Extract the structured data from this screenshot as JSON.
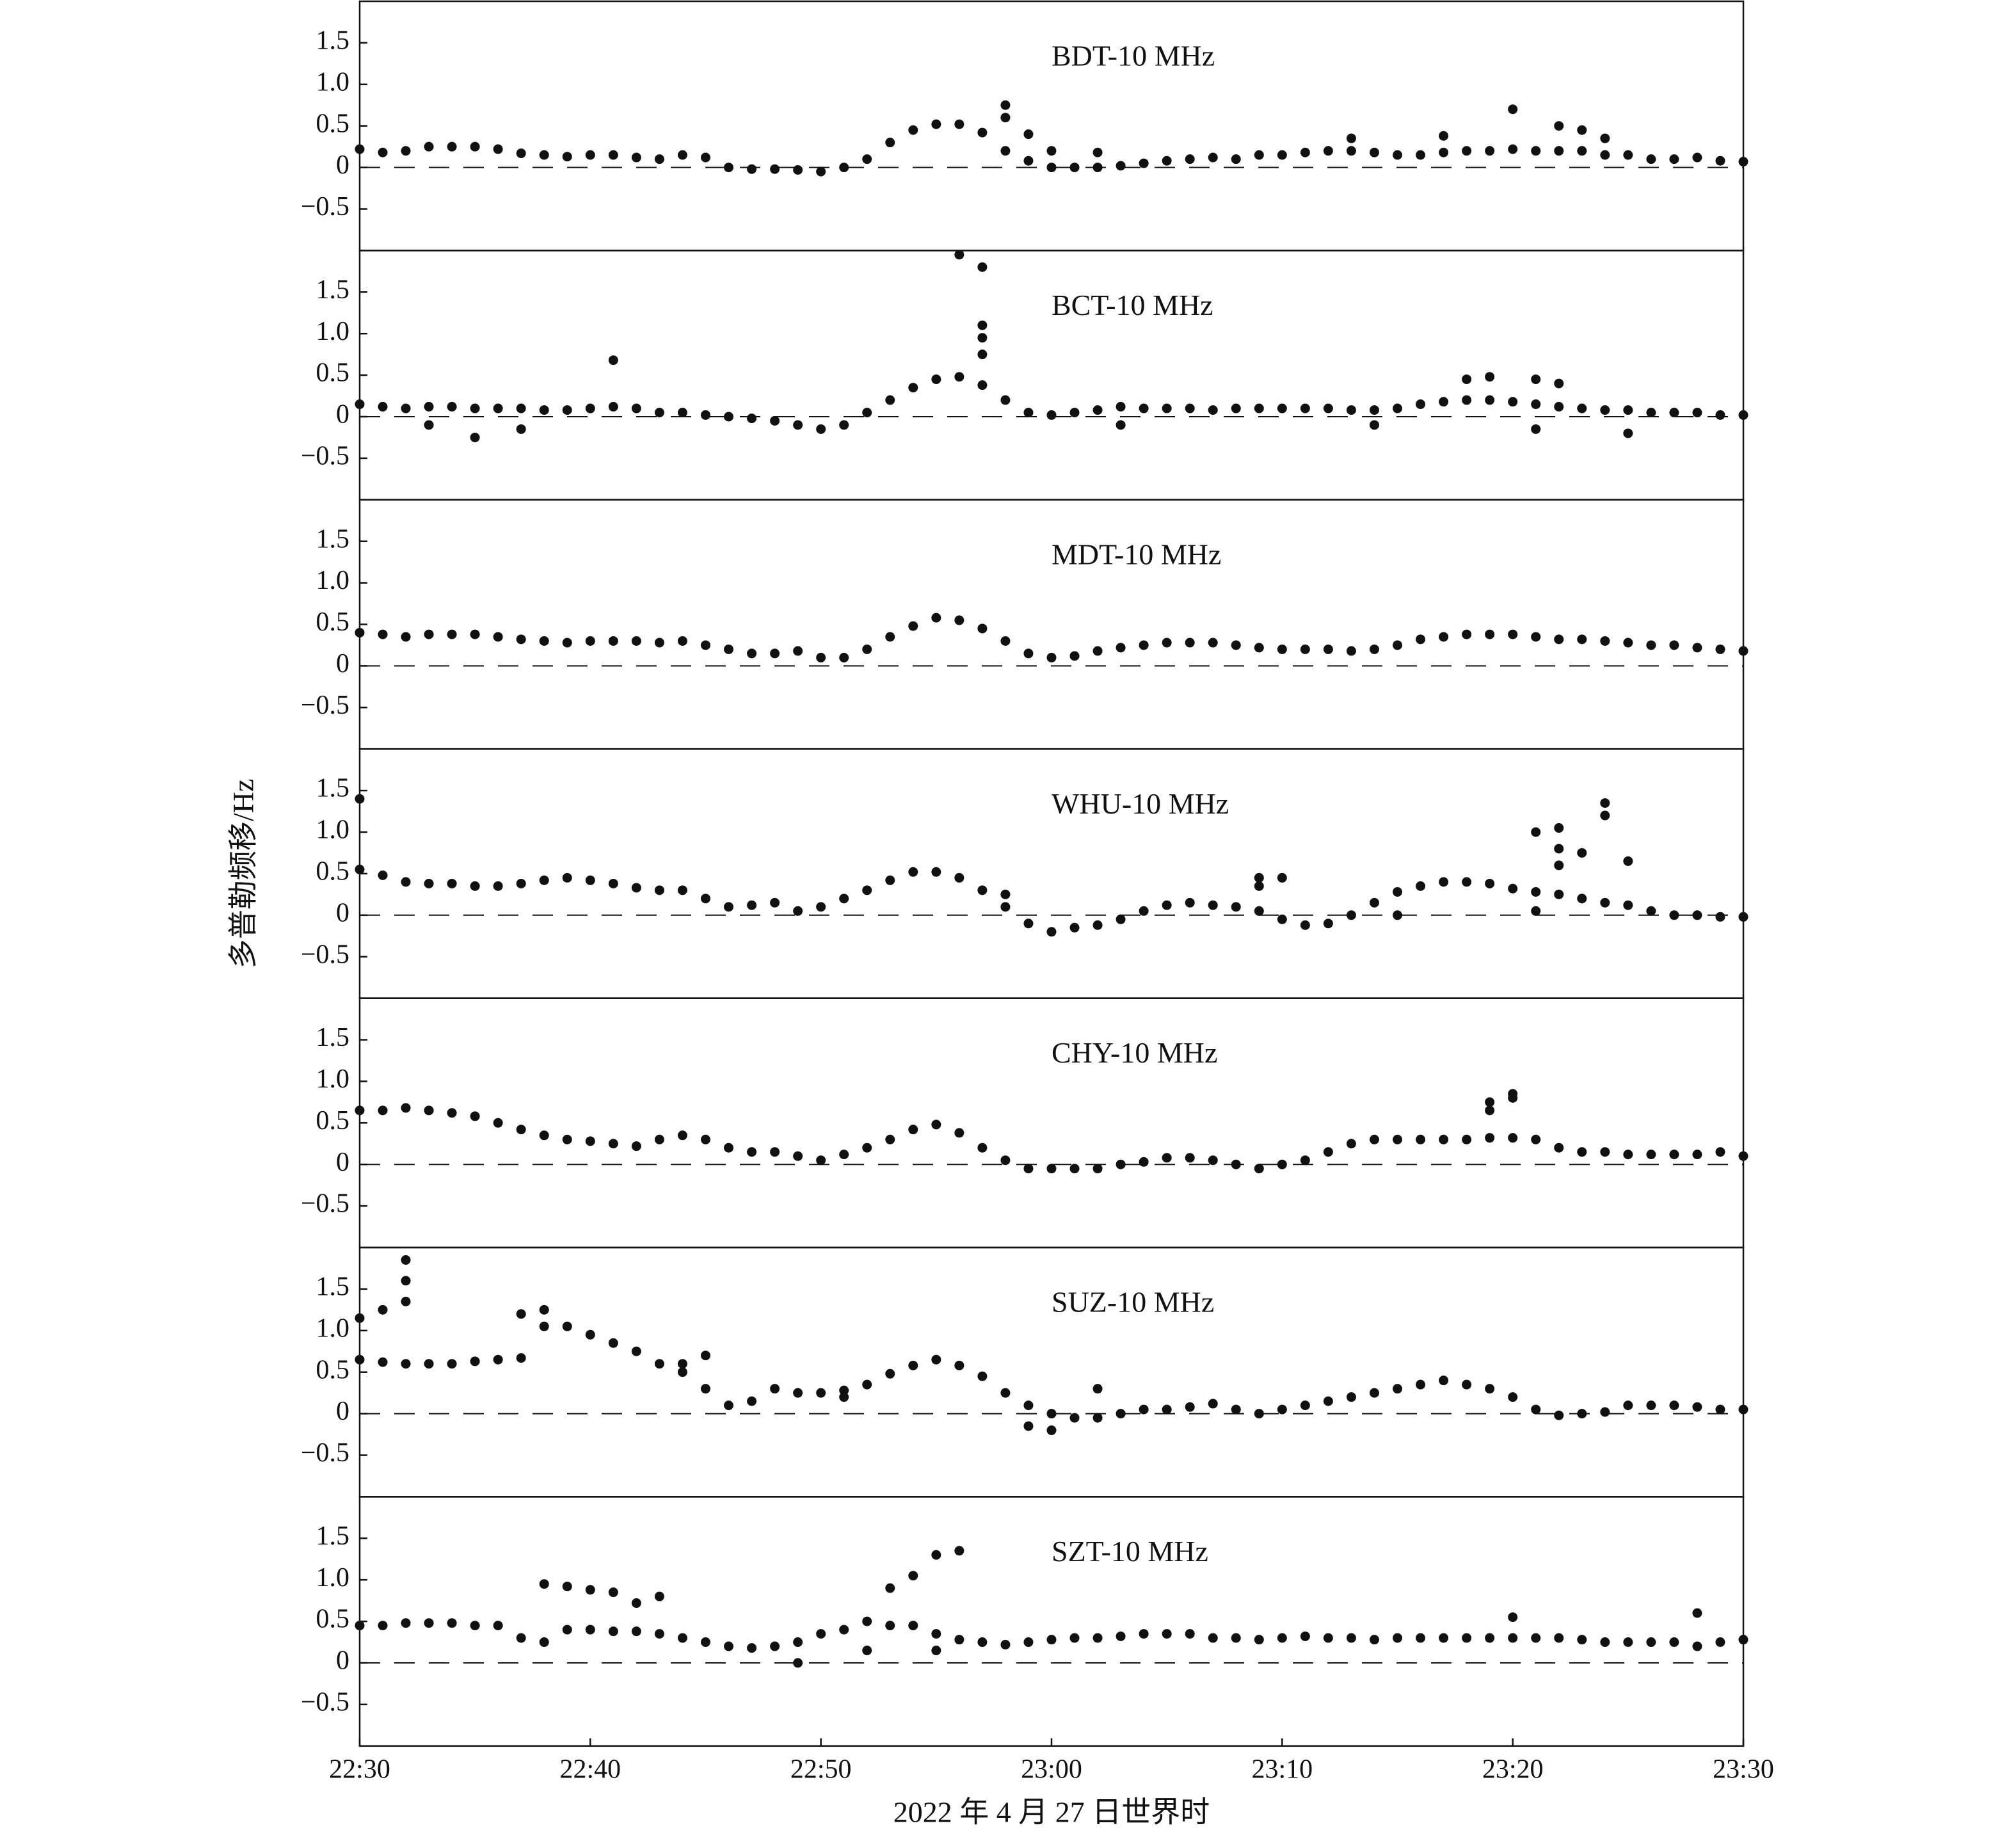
{
  "chart_data": [
    {
      "type": "scatter",
      "title": "BDT-10 MHz",
      "color": "#111111",
      "xlim": [
        "22:30",
        "23:30"
      ],
      "ylim": [
        -1,
        2
      ],
      "yticks": [
        {
          "value": -0.5,
          "label": "−0.5"
        },
        0,
        0.5,
        {
          "value": 1,
          "label": "1.0"
        },
        1.5
      ],
      "reference_line": 0,
      "x": [
        "22:30",
        "22:31",
        "22:32",
        "22:33",
        "22:34",
        "22:35",
        "22:36",
        "22:37",
        "22:38",
        "22:39",
        "22:40",
        "22:41",
        "22:42",
        "22:43",
        "22:44",
        "22:45",
        "22:46",
        "22:47",
        "22:48",
        "22:49",
        "22:50",
        "22:51",
        "22:52",
        "22:53",
        "22:54",
        "22:55",
        "22:56",
        "22:57",
        "22:58",
        "22:59",
        "23:00",
        "23:01",
        "23:02",
        "23:03",
        "23:04",
        "23:05",
        "23:06",
        "23:07",
        "23:08",
        "23:09",
        "23:10",
        "23:11",
        "23:12",
        "23:13",
        "23:14",
        "23:15",
        "23:16",
        "23:17",
        "23:18",
        "23:19",
        "23:20",
        "23:21",
        "23:22",
        "23:23",
        "23:24",
        "23:25",
        "23:26",
        "23:27",
        "23:28",
        "23:29",
        "23:30",
        "22:58",
        "22:58",
        "22:59",
        "23:00",
        "23:02",
        "23:13",
        "23:17",
        "23:20",
        "23:22",
        "23:23",
        "23:24"
      ],
      "values": [
        0.22,
        0.18,
        0.2,
        0.25,
        0.25,
        0.25,
        0.22,
        0.17,
        0.15,
        0.13,
        0.15,
        0.15,
        0.12,
        0.1,
        0.15,
        0.12,
        0,
        -0.02,
        -0.02,
        -0.03,
        -0.05,
        0,
        0.1,
        0.3,
        0.45,
        0.52,
        0.52,
        0.42,
        0.2,
        0.08,
        0,
        0,
        0,
        0.02,
        0.05,
        0.08,
        0.1,
        0.12,
        0.1,
        0.15,
        0.15,
        0.18,
        0.2,
        0.2,
        0.18,
        0.15,
        0.15,
        0.18,
        0.2,
        0.2,
        0.22,
        0.2,
        0.2,
        0.2,
        0.15,
        0.15,
        0.1,
        0.1,
        0.12,
        0.08,
        0.07,
        0.75,
        0.6,
        0.4,
        0.2,
        0.18,
        0.35,
        0.38,
        0.7,
        0.5,
        0.45,
        0.35
      ]
    },
    {
      "type": "scatter",
      "title": "BCT-10 MHz",
      "color": "#111111",
      "xlim": [
        "22:30",
        "23:30"
      ],
      "ylim": [
        -1,
        2
      ],
      "yticks": [
        {
          "value": -0.5,
          "label": "−0.5"
        },
        0,
        0.5,
        {
          "value": 1,
          "label": "1.0"
        },
        1.5
      ],
      "reference_line": 0,
      "x": [
        "22:30",
        "22:31",
        "22:32",
        "22:33",
        "22:34",
        "22:35",
        "22:36",
        "22:37",
        "22:38",
        "22:39",
        "22:40",
        "22:41",
        "22:42",
        "22:43",
        "22:44",
        "22:45",
        "22:46",
        "22:47",
        "22:48",
        "22:49",
        "22:50",
        "22:51",
        "22:52",
        "22:53",
        "22:54",
        "22:55",
        "22:56",
        "22:57",
        "22:58",
        "22:59",
        "23:00",
        "23:01",
        "23:02",
        "23:03",
        "23:04",
        "23:05",
        "23:06",
        "23:07",
        "23:08",
        "23:09",
        "23:10",
        "23:11",
        "23:12",
        "23:13",
        "23:14",
        "23:15",
        "23:16",
        "23:17",
        "23:18",
        "23:19",
        "23:20",
        "23:21",
        "23:22",
        "23:23",
        "23:24",
        "23:25",
        "23:26",
        "23:27",
        "23:28",
        "23:29",
        "23:30",
        "22:41",
        "22:56",
        "22:57",
        "22:57",
        "22:57",
        "22:57",
        "22:33",
        "22:35",
        "22:37",
        "23:18",
        "23:19",
        "23:21",
        "23:22",
        "23:14",
        "23:21",
        "23:25",
        "23:03"
      ],
      "values": [
        0.15,
        0.12,
        0.1,
        0.12,
        0.12,
        0.1,
        0.1,
        0.1,
        0.08,
        0.08,
        0.1,
        0.12,
        0.1,
        0.05,
        0.05,
        0.02,
        0,
        -0.02,
        -0.05,
        -0.1,
        -0.15,
        -0.1,
        0.05,
        0.2,
        0.35,
        0.45,
        0.48,
        0.38,
        0.2,
        0.05,
        0.02,
        0.05,
        0.08,
        0.12,
        0.1,
        0.1,
        0.1,
        0.08,
        0.1,
        0.1,
        0.1,
        0.1,
        0.1,
        0.08,
        0.08,
        0.1,
        0.15,
        0.18,
        0.2,
        0.2,
        0.18,
        0.15,
        0.12,
        0.1,
        0.08,
        0.08,
        0.05,
        0.05,
        0.05,
        0.02,
        0.02,
        0.68,
        1.95,
        1.8,
        1.1,
        0.95,
        0.75,
        -0.1,
        -0.25,
        -0.15,
        0.45,
        0.48,
        0.45,
        0.4,
        -0.1,
        -0.15,
        -0.2,
        -0.1
      ]
    },
    {
      "type": "scatter",
      "title": "MDT-10 MHz",
      "color": "#111111",
      "xlim": [
        "22:30",
        "23:30"
      ],
      "ylim": [
        -1,
        2
      ],
      "yticks": [
        {
          "value": -0.5,
          "label": "−0.5"
        },
        0,
        0.5,
        {
          "value": 1,
          "label": "1.0"
        },
        1.5
      ],
      "reference_line": 0,
      "x": [
        "22:30",
        "22:31",
        "22:32",
        "22:33",
        "22:34",
        "22:35",
        "22:36",
        "22:37",
        "22:38",
        "22:39",
        "22:40",
        "22:41",
        "22:42",
        "22:43",
        "22:44",
        "22:45",
        "22:46",
        "22:47",
        "22:48",
        "22:49",
        "22:50",
        "22:51",
        "22:52",
        "22:53",
        "22:54",
        "22:55",
        "22:56",
        "22:57",
        "22:58",
        "22:59",
        "23:00",
        "23:01",
        "23:02",
        "23:03",
        "23:04",
        "23:05",
        "23:06",
        "23:07",
        "23:08",
        "23:09",
        "23:10",
        "23:11",
        "23:12",
        "23:13",
        "23:14",
        "23:15",
        "23:16",
        "23:17",
        "23:18",
        "23:19",
        "23:20",
        "23:21",
        "23:22",
        "23:23",
        "23:24",
        "23:25",
        "23:26",
        "23:27",
        "23:28",
        "23:29",
        "23:30"
      ],
      "values": [
        0.4,
        0.38,
        0.35,
        0.38,
        0.38,
        0.38,
        0.35,
        0.32,
        0.3,
        0.28,
        0.3,
        0.3,
        0.3,
        0.28,
        0.3,
        0.25,
        0.2,
        0.15,
        0.15,
        0.18,
        0.1,
        0.1,
        0.2,
        0.35,
        0.48,
        0.58,
        0.55,
        0.45,
        0.3,
        0.15,
        0.1,
        0.12,
        0.18,
        0.22,
        0.25,
        0.28,
        0.28,
        0.28,
        0.25,
        0.22,
        0.2,
        0.2,
        0.2,
        0.18,
        0.2,
        0.25,
        0.32,
        0.35,
        0.38,
        0.38,
        0.38,
        0.35,
        0.32,
        0.32,
        0.3,
        0.28,
        0.25,
        0.25,
        0.22,
        0.2,
        0.18
      ]
    },
    {
      "type": "scatter",
      "title": "WHU-10 MHz",
      "ylabel": "多普勒频移/Hz",
      "color": "#111111",
      "xlim": [
        "22:30",
        "23:30"
      ],
      "ylim": [
        -1,
        2
      ],
      "yticks": [
        {
          "value": -0.5,
          "label": "−0.5"
        },
        0,
        0.5,
        {
          "value": 1,
          "label": "1.0"
        },
        1.5
      ],
      "reference_line": 0,
      "x": [
        "22:30",
        "22:31",
        "22:32",
        "22:33",
        "22:34",
        "22:35",
        "22:36",
        "22:37",
        "22:38",
        "22:39",
        "22:40",
        "22:41",
        "22:42",
        "22:43",
        "22:44",
        "22:45",
        "22:46",
        "22:47",
        "22:48",
        "22:49",
        "22:50",
        "22:51",
        "22:52",
        "22:53",
        "22:54",
        "22:55",
        "22:56",
        "22:57",
        "22:58",
        "22:59",
        "23:00",
        "23:01",
        "23:02",
        "23:03",
        "23:04",
        "23:05",
        "23:06",
        "23:07",
        "23:08",
        "23:09",
        "23:10",
        "23:11",
        "23:12",
        "23:13",
        "23:14",
        "23:15",
        "23:16",
        "23:17",
        "23:18",
        "23:19",
        "23:20",
        "23:21",
        "23:22",
        "23:23",
        "23:24",
        "23:25",
        "23:26",
        "23:27",
        "23:28",
        "23:29",
        "23:30",
        "22:30",
        "22:58",
        "23:09",
        "23:09",
        "23:10",
        "23:15",
        "23:21",
        "23:22",
        "23:22",
        "23:22",
        "23:23",
        "23:24",
        "23:24",
        "23:25",
        "23:21"
      ],
      "values": [
        0.55,
        0.48,
        0.4,
        0.38,
        0.38,
        0.35,
        0.35,
        0.38,
        0.42,
        0.45,
        0.42,
        0.38,
        0.33,
        0.3,
        0.3,
        0.2,
        0.1,
        0.12,
        0.15,
        0.05,
        0.1,
        0.2,
        0.3,
        0.42,
        0.52,
        0.52,
        0.45,
        0.3,
        0.1,
        -0.1,
        -0.2,
        -0.15,
        -0.12,
        -0.05,
        0.05,
        0.12,
        0.15,
        0.12,
        0.1,
        0.05,
        -0.05,
        -0.12,
        -0.1,
        0,
        0.15,
        0.28,
        0.35,
        0.4,
        0.4,
        0.38,
        0.32,
        0.28,
        0.25,
        0.2,
        0.15,
        0.12,
        0.05,
        0,
        0,
        -0.02,
        -0.02,
        1.4,
        0.25,
        0.45,
        0.35,
        0.45,
        0,
        1.0,
        1.05,
        0.8,
        0.6,
        0.75,
        1.2,
        1.35,
        0.65,
        0.05
      ]
    },
    {
      "type": "scatter",
      "title": "CHY-10 MHz",
      "color": "#111111",
      "xlim": [
        "22:30",
        "23:30"
      ],
      "ylim": [
        -1,
        2
      ],
      "yticks": [
        {
          "value": -0.5,
          "label": "−0.5"
        },
        0,
        0.5,
        {
          "value": 1,
          "label": "1.0"
        },
        1.5
      ],
      "reference_line": 0,
      "x": [
        "22:30",
        "22:31",
        "22:32",
        "22:33",
        "22:34",
        "22:35",
        "22:36",
        "22:37",
        "22:38",
        "22:39",
        "22:40",
        "22:41",
        "22:42",
        "22:43",
        "22:44",
        "22:45",
        "22:46",
        "22:47",
        "22:48",
        "22:49",
        "22:50",
        "22:51",
        "22:52",
        "22:53",
        "22:54",
        "22:55",
        "22:56",
        "22:57",
        "22:58",
        "22:59",
        "23:00",
        "23:01",
        "23:02",
        "23:03",
        "23:04",
        "23:05",
        "23:06",
        "23:07",
        "23:08",
        "23:09",
        "23:10",
        "23:11",
        "23:12",
        "23:13",
        "23:14",
        "23:15",
        "23:16",
        "23:17",
        "23:18",
        "23:19",
        "23:20",
        "23:21",
        "23:22",
        "23:23",
        "23:24",
        "23:25",
        "23:26",
        "23:27",
        "23:28",
        "23:29",
        "23:30",
        "23:19",
        "23:19",
        "23:20",
        "23:20"
      ],
      "values": [
        0.65,
        0.65,
        0.68,
        0.65,
        0.62,
        0.58,
        0.5,
        0.42,
        0.35,
        0.3,
        0.28,
        0.25,
        0.22,
        0.3,
        0.35,
        0.3,
        0.2,
        0.15,
        0.15,
        0.1,
        0.05,
        0.12,
        0.2,
        0.3,
        0.42,
        0.48,
        0.38,
        0.2,
        0.05,
        -0.05,
        -0.05,
        -0.05,
        -0.05,
        0,
        0.03,
        0.08,
        0.08,
        0.05,
        0,
        -0.05,
        0,
        0.05,
        0.15,
        0.25,
        0.3,
        0.3,
        0.3,
        0.3,
        0.3,
        0.32,
        0.32,
        0.3,
        0.2,
        0.15,
        0.15,
        0.12,
        0.12,
        0.12,
        0.12,
        0.15,
        0.1,
        0.75,
        0.65,
        0.85,
        0.8
      ]
    },
    {
      "type": "scatter",
      "title": "SUZ-10 MHz",
      "color": "#111111",
      "xlim": [
        "22:30",
        "23:30"
      ],
      "ylim": [
        -1,
        2
      ],
      "yticks": [
        {
          "value": -0.5,
          "label": "−0.5"
        },
        0,
        0.5,
        {
          "value": 1,
          "label": "1.0"
        },
        1.5
      ],
      "reference_line": 0,
      "x": [
        "22:30",
        "22:31",
        "22:32",
        "22:33",
        "22:34",
        "22:35",
        "22:36",
        "22:37",
        "22:38",
        "22:39",
        "22:40",
        "22:41",
        "22:42",
        "22:43",
        "22:44",
        "22:45",
        "22:46",
        "22:47",
        "22:48",
        "22:49",
        "22:50",
        "22:51",
        "22:52",
        "22:53",
        "22:54",
        "22:55",
        "22:56",
        "22:57",
        "22:58",
        "22:59",
        "23:00",
        "23:01",
        "23:02",
        "23:03",
        "23:04",
        "23:05",
        "23:06",
        "23:07",
        "23:08",
        "23:09",
        "23:10",
        "23:11",
        "23:12",
        "23:13",
        "23:14",
        "23:15",
        "23:16",
        "23:17",
        "23:18",
        "23:19",
        "23:20",
        "23:21",
        "23:22",
        "23:23",
        "23:24",
        "23:25",
        "23:26",
        "23:27",
        "23:28",
        "23:29",
        "23:30",
        "22:30",
        "22:31",
        "22:32",
        "22:32",
        "22:32",
        "22:37",
        "22:38",
        "22:44",
        "22:45",
        "22:51",
        "22:59",
        "23:00",
        "23:02"
      ],
      "values": [
        0.65,
        0.62,
        0.6,
        0.6,
        0.6,
        0.63,
        0.65,
        0.67,
        1.25,
        1.05,
        0.95,
        0.85,
        0.75,
        0.6,
        0.5,
        0.3,
        0.1,
        0.15,
        0.3,
        0.25,
        0.25,
        0.28,
        0.35,
        0.48,
        0.58,
        0.65,
        0.58,
        0.45,
        0.25,
        0.1,
        0,
        -0.05,
        -0.05,
        0,
        0.05,
        0.05,
        0.08,
        0.12,
        0.05,
        0,
        0.05,
        0.1,
        0.15,
        0.2,
        0.25,
        0.3,
        0.35,
        0.4,
        0.35,
        0.3,
        0.2,
        0.05,
        -0.02,
        0,
        0.02,
        0.1,
        0.1,
        0.1,
        0.08,
        0.05,
        0.05,
        1.15,
        1.25,
        1.35,
        1.6,
        1.85,
        1.2,
        1.05,
        0.6,
        0.7,
        0.2,
        -0.15,
        -0.2,
        0.3
      ]
    },
    {
      "type": "scatter",
      "title": "SZT-10 MHz",
      "xlabel": "2022 年 4 月 27 日世界时",
      "color": "#111111",
      "xlim": [
        "22:30",
        "23:30"
      ],
      "xticks": [
        "22:30",
        "22:40",
        "22:50",
        "23:00",
        "23:10",
        "23:20",
        "23:30"
      ],
      "ylim": [
        -1,
        2
      ],
      "yticks": [
        {
          "value": -0.5,
          "label": "−0.5"
        },
        0,
        0.5,
        {
          "value": 1,
          "label": "1.0"
        },
        1.5
      ],
      "reference_line": 0,
      "x": [
        "22:30",
        "22:31",
        "22:32",
        "22:33",
        "22:34",
        "22:35",
        "22:36",
        "22:37",
        "22:38",
        "22:39",
        "22:40",
        "22:41",
        "22:42",
        "22:43",
        "22:44",
        "22:45",
        "22:46",
        "22:47",
        "22:48",
        "22:49",
        "22:50",
        "22:51",
        "22:52",
        "22:53",
        "22:54",
        "22:55",
        "22:56",
        "22:57",
        "22:58",
        "22:59",
        "23:00",
        "23:01",
        "23:02",
        "23:03",
        "23:04",
        "23:05",
        "23:06",
        "23:07",
        "23:08",
        "23:09",
        "23:10",
        "23:11",
        "23:12",
        "23:13",
        "23:14",
        "23:15",
        "23:16",
        "23:17",
        "23:18",
        "23:19",
        "23:20",
        "23:21",
        "23:22",
        "23:23",
        "23:24",
        "23:25",
        "23:26",
        "23:27",
        "23:28",
        "23:29",
        "23:30",
        "22:38",
        "22:39",
        "22:40",
        "22:41",
        "22:42",
        "22:43",
        "22:53",
        "22:54",
        "22:55",
        "22:56",
        "22:49",
        "22:52",
        "23:20",
        "23:28",
        "22:55"
      ],
      "values": [
        0.45,
        0.45,
        0.48,
        0.48,
        0.48,
        0.45,
        0.45,
        0.3,
        0.25,
        0.4,
        0.4,
        0.38,
        0.38,
        0.35,
        0.3,
        0.25,
        0.2,
        0.18,
        0.2,
        0.25,
        0.35,
        0.4,
        0.5,
        0.45,
        0.45,
        0.35,
        0.28,
        0.25,
        0.22,
        0.25,
        0.28,
        0.3,
        0.3,
        0.32,
        0.35,
        0.35,
        0.35,
        0.3,
        0.3,
        0.28,
        0.3,
        0.32,
        0.3,
        0.3,
        0.28,
        0.3,
        0.3,
        0.3,
        0.3,
        0.3,
        0.3,
        0.3,
        0.3,
        0.28,
        0.25,
        0.25,
        0.25,
        0.25,
        0.2,
        0.25,
        0.28,
        0.95,
        0.92,
        0.88,
        0.85,
        0.72,
        0.8,
        0.9,
        1.05,
        1.3,
        1.35,
        0,
        0.15,
        0.55,
        0.6,
        0.15
      ]
    }
  ]
}
